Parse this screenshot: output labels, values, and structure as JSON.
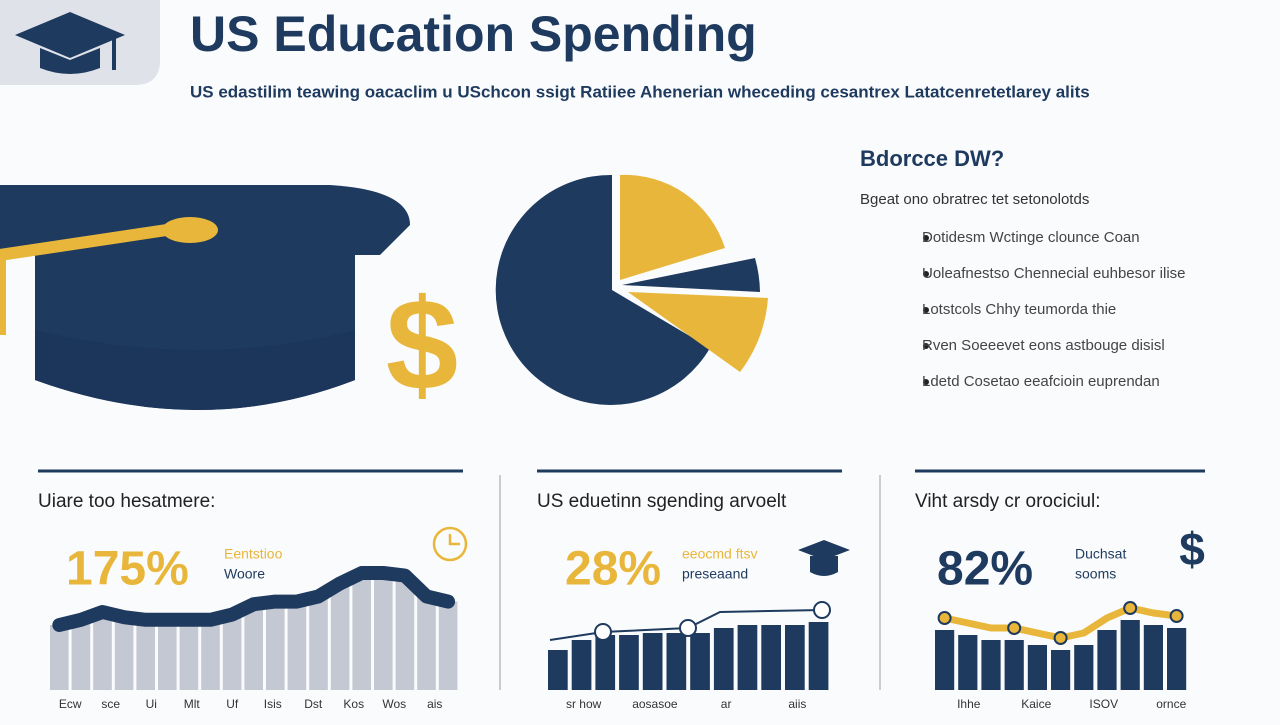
{
  "header": {
    "title": "US Education Spending",
    "subtitle": "US edastilim teawing oacaclim u USchcon ssigt Ratiiee Ahenerian wheceding cesantrex Latatcenretetlarey alits"
  },
  "sidebar": {
    "heading": "Bdorcce DW?",
    "intro": "Bgeat ono obratrec tet setonolotds",
    "bullets": [
      "Dotidesm Wctinge clounce Coan",
      "Uoleafnestso Chennecial euhbesor ilise",
      "Lotstcols Chhy teumorda thie",
      "Rven Soeeevet eons astbouge disisl",
      "Ldetd Cosetao eeafcioin euprendan"
    ]
  },
  "panels": [
    {
      "title": "Uiare too hesatmere:",
      "stat": "175%",
      "note": [
        "Eentstioo",
        "Woore"
      ],
      "labels": [
        "Ecw",
        "sce",
        "Ui",
        "Mlt",
        "Uf",
        "Isis",
        "Dst",
        "Kos",
        "Wos",
        "ais"
      ],
      "bars": [
        50,
        54,
        60,
        56,
        54,
        54,
        54,
        54,
        58,
        66,
        68,
        68,
        72,
        82,
        90,
        90,
        88,
        72,
        68
      ]
    },
    {
      "title": "US eduetinn sgending arvoelt",
      "stat": "28%",
      "note": [
        "eeocmd ftsv",
        "preseaand"
      ],
      "labels": [
        "sr how",
        "aosasoe",
        "ar",
        "aiis"
      ],
      "bars": [
        40,
        50,
        55,
        55,
        57,
        57,
        57,
        62,
        65,
        65,
        65,
        68
      ]
    },
    {
      "title": "Viht arsdy cr orociciul:",
      "stat": "82%",
      "note": [
        "Duchsat",
        "sooms"
      ],
      "labels": [
        "Ihhe",
        "Kaice",
        "ISOV",
        "ornce"
      ],
      "bars": [
        60,
        55,
        50,
        50,
        45,
        40,
        45,
        60,
        70,
        65,
        62
      ]
    }
  ]
}
